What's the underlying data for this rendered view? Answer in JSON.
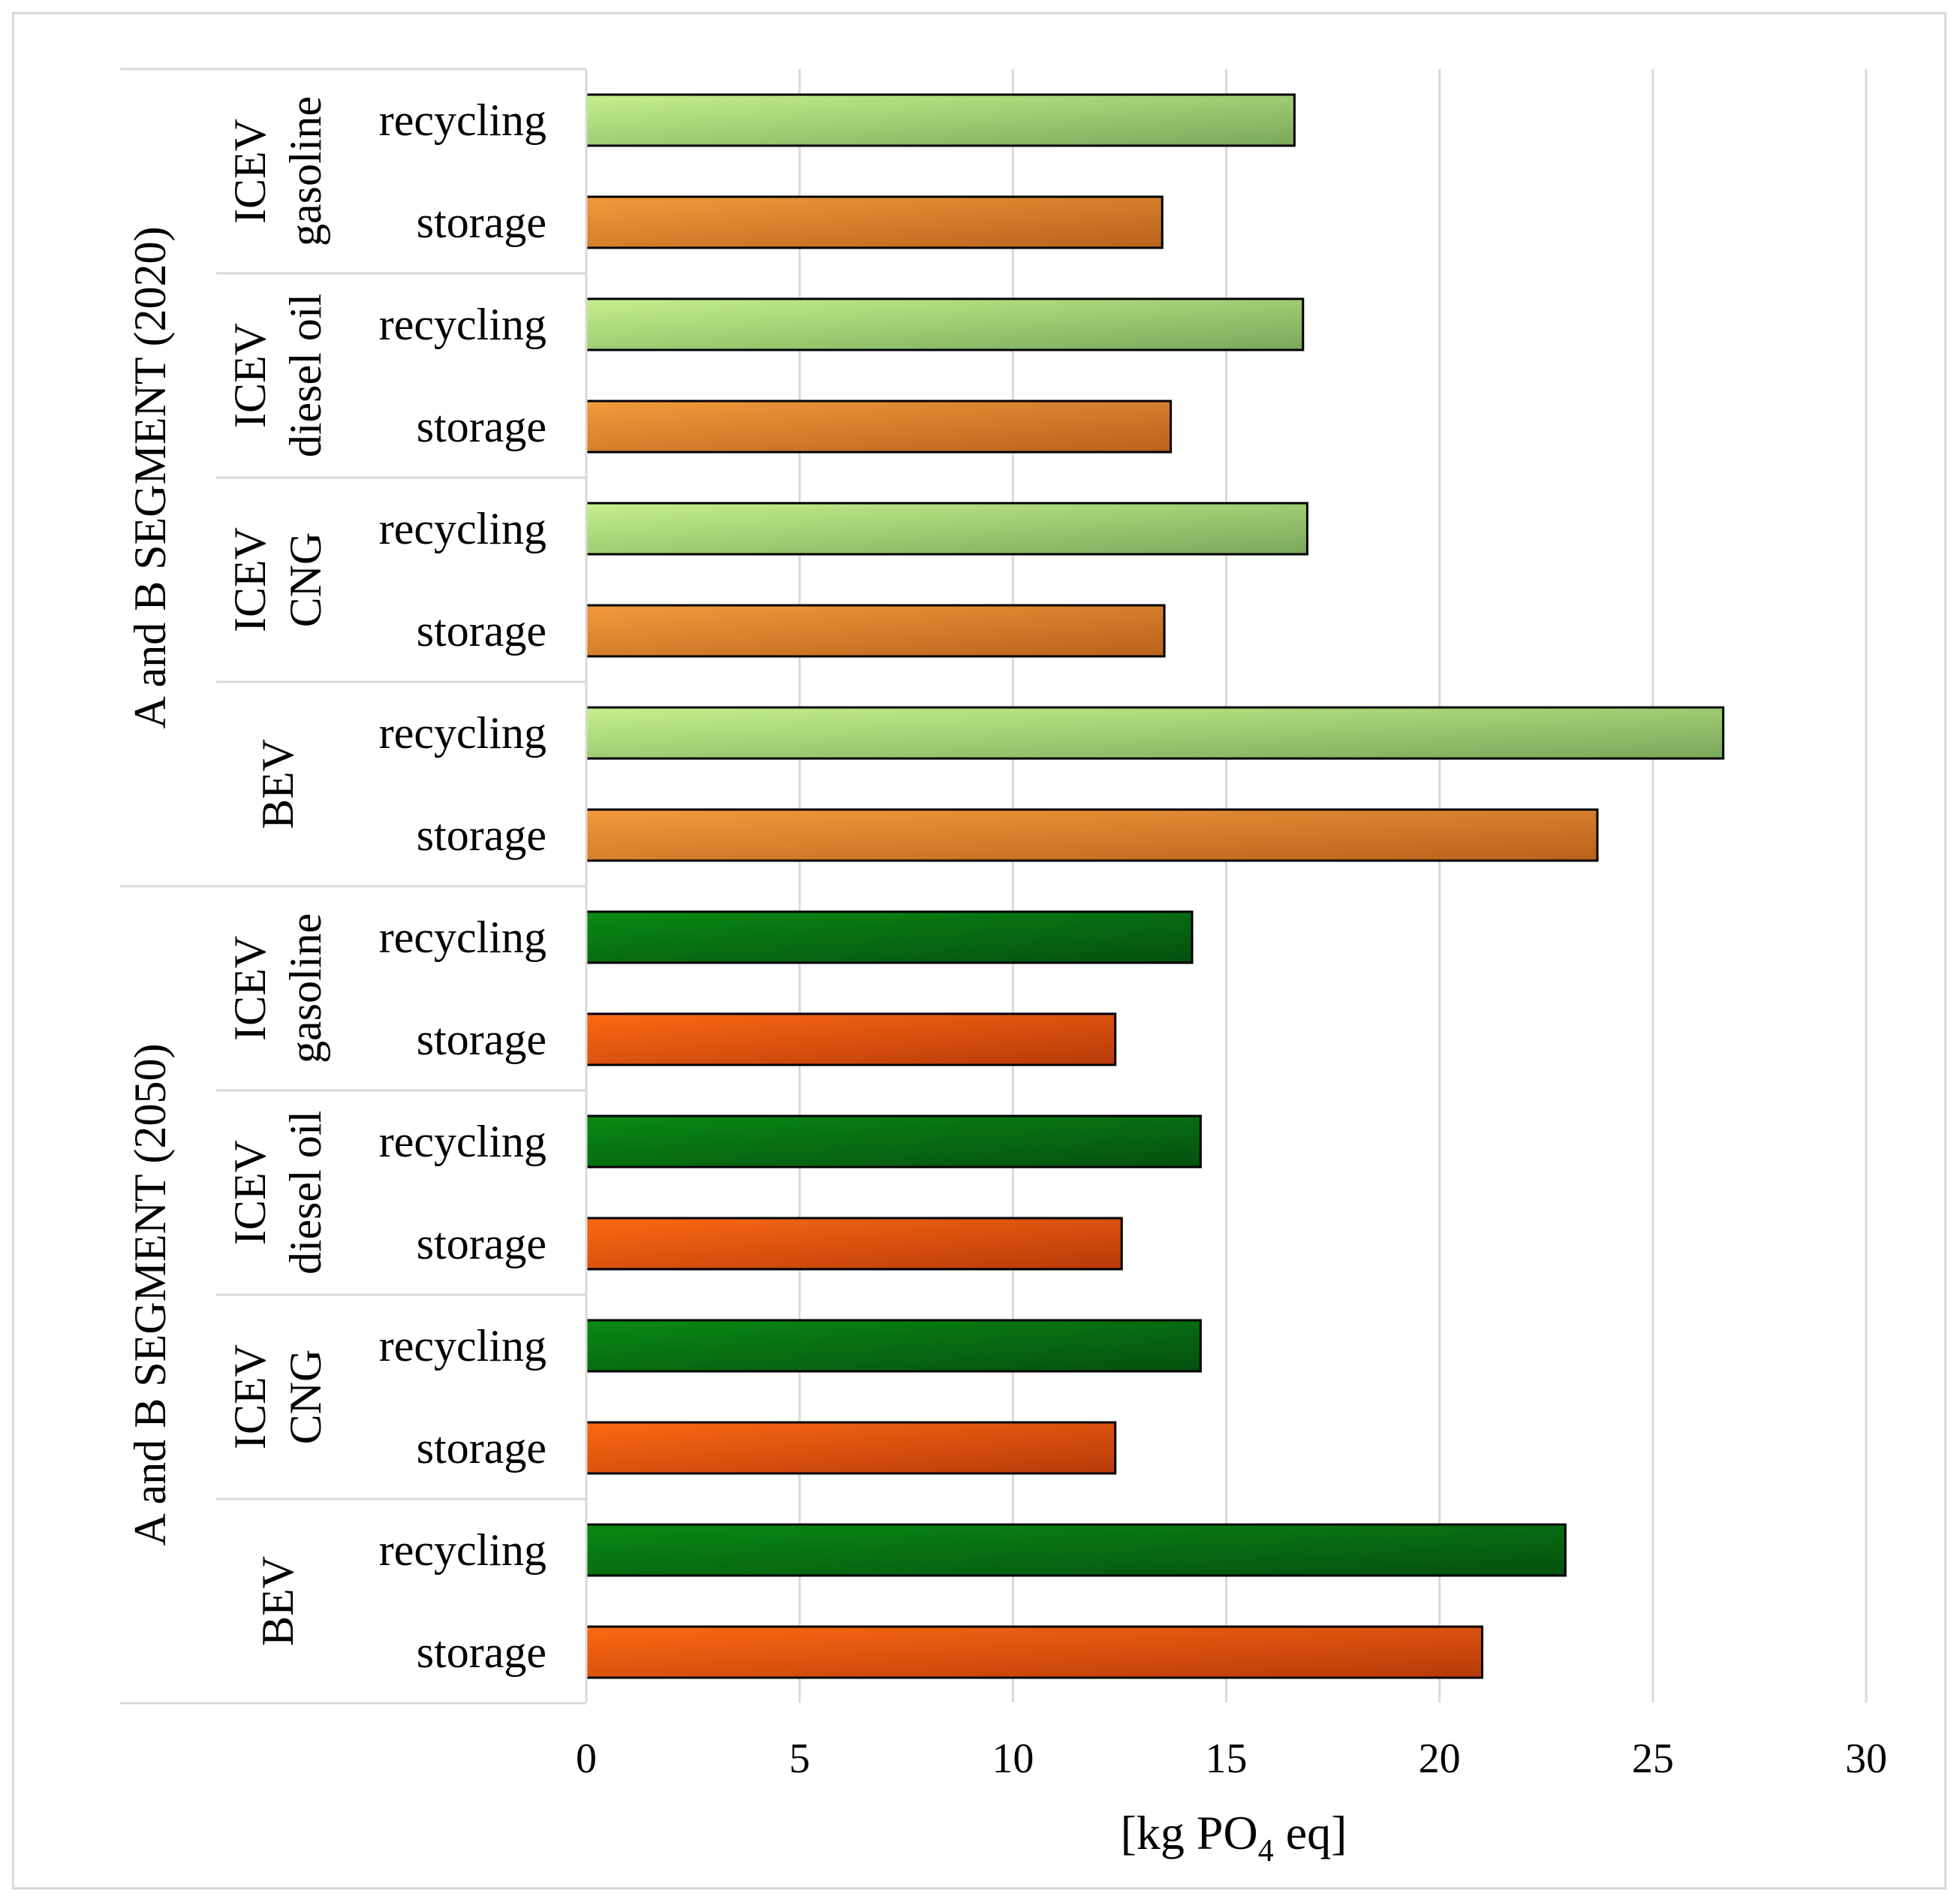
{
  "chart_data": {
    "type": "bar",
    "orientation": "horizontal",
    "xlabel": {
      "prefix": "[kg PO",
      "subscript": "4",
      "suffix": " eq]"
    },
    "xlim": [
      0,
      30
    ],
    "xticks": [
      0,
      5,
      10,
      15,
      20,
      25,
      30
    ],
    "grid": true,
    "colors": {
      "recycling_2020": [
        "#c6f08c",
        "#7aa85a"
      ],
      "storage_2020": [
        "#f29a3c",
        "#b8621c"
      ],
      "recycling_2050": [
        "#0a8a12",
        "#055010"
      ],
      "storage_2050": [
        "#fb6a12",
        "#b83a0a"
      ]
    },
    "segments": [
      {
        "label": "A and B SEGMENT (2020)",
        "year": "2020",
        "groups": [
          {
            "lines": [
              "ICEV",
              "gasoline"
            ],
            "bars": [
              {
                "category": "recycling",
                "value": 16.6
              },
              {
                "category": "storage",
                "value": 13.5
              }
            ]
          },
          {
            "lines": [
              "ICEV",
              "diesel oil"
            ],
            "bars": [
              {
                "category": "recycling",
                "value": 16.8
              },
              {
                "category": "storage",
                "value": 13.7
              }
            ]
          },
          {
            "lines": [
              "ICEV",
              "CNG"
            ],
            "bars": [
              {
                "category": "recycling",
                "value": 16.9
              },
              {
                "category": "storage",
                "value": 13.55
              }
            ]
          },
          {
            "lines": [
              "BEV"
            ],
            "bars": [
              {
                "category": "recycling",
                "value": 26.65
              },
              {
                "category": "storage",
                "value": 23.7
              }
            ]
          }
        ]
      },
      {
        "label": "A and B SEGMENT (2050)",
        "year": "2050",
        "groups": [
          {
            "lines": [
              "ICEV",
              "gasoline"
            ],
            "bars": [
              {
                "category": "recycling",
                "value": 14.2
              },
              {
                "category": "storage",
                "value": 12.4
              }
            ]
          },
          {
            "lines": [
              "ICEV",
              "diesel oil"
            ],
            "bars": [
              {
                "category": "recycling",
                "value": 14.4
              },
              {
                "category": "storage",
                "value": 12.55
              }
            ]
          },
          {
            "lines": [
              "ICEV",
              "CNG"
            ],
            "bars": [
              {
                "category": "recycling",
                "value": 14.4
              },
              {
                "category": "storage",
                "value": 12.4
              }
            ]
          },
          {
            "lines": [
              "BEV"
            ],
            "bars": [
              {
                "category": "recycling",
                "value": 22.95
              },
              {
                "category": "storage",
                "value": 21.0
              }
            ]
          }
        ]
      }
    ]
  }
}
